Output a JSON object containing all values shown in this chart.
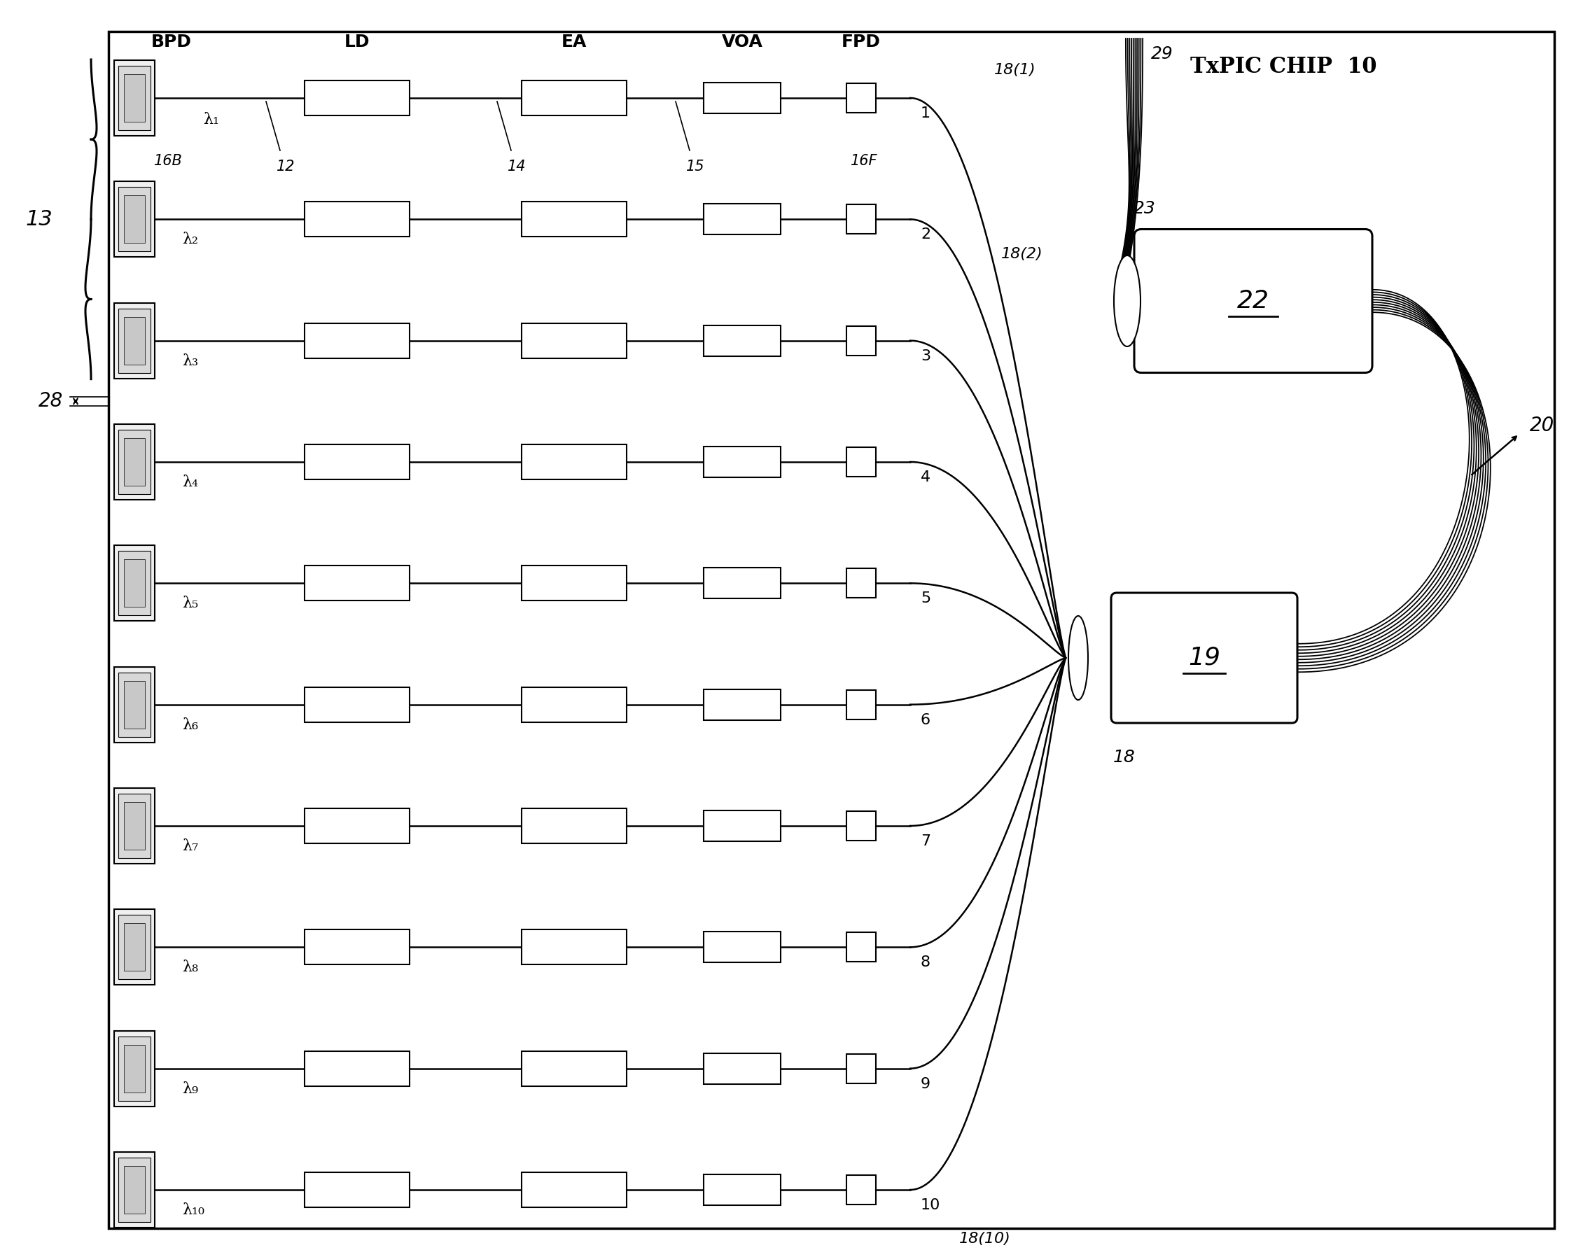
{
  "title": "TxPIC CHIP  10",
  "bg_color": "#ffffff",
  "n_channels": 10,
  "channel_labels": [
    "λ₁",
    "λ₂",
    "λ₃",
    "λ₄",
    "λ₅",
    "λ₆",
    "λ₇",
    "λ₈",
    "λ₉",
    "λ₁₀"
  ],
  "channel_numbers": [
    "1",
    "2",
    "3",
    "4",
    "5",
    "6",
    "7",
    "8",
    "9",
    "10"
  ],
  "component_labels": [
    "BPD",
    "LD",
    "EA",
    "VOA",
    "FPD"
  ],
  "label_16B": "16B",
  "label_16F": "16F",
  "label_12": "12",
  "label_14": "14",
  "label_15": "15",
  "label_13": "13",
  "label_28": "28",
  "label_18_1": "18(1)",
  "label_18_2": "18(2)",
  "label_18_10": "18(10)",
  "label_18": "18",
  "label_19": "19",
  "label_22": "22",
  "label_23": "23",
  "label_20": "20",
  "label_29": "29"
}
